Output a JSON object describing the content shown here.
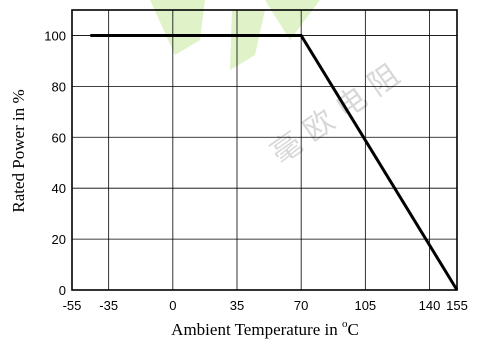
{
  "chart_data": {
    "type": "line",
    "x_ticks": [
      -55,
      -35,
      0,
      35,
      70,
      105,
      140,
      155
    ],
    "x_ticks_text": [
      "-55",
      "-35",
      "0",
      "35",
      "70",
      "105",
      "140",
      "155"
    ],
    "y_ticks": [
      0,
      20,
      40,
      60,
      80,
      100
    ],
    "y_ticks_text": [
      "0",
      "20",
      "40",
      "60",
      "80",
      "100"
    ],
    "xlim": [
      -55,
      155
    ],
    "ylim": [
      0,
      110
    ],
    "xlabel": "Ambient Temperature in ",
    "xlabel_unit": "C",
    "xlabel_degree": "o",
    "ylabel": "Rated Power in %",
    "grid": true,
    "series": [
      {
        "x": [
          -45,
          70,
          155
        ],
        "y": [
          100,
          100,
          0
        ]
      }
    ]
  },
  "watermark": {
    "text": "毫 欧 电 阻",
    "color": "#dff2c8"
  }
}
